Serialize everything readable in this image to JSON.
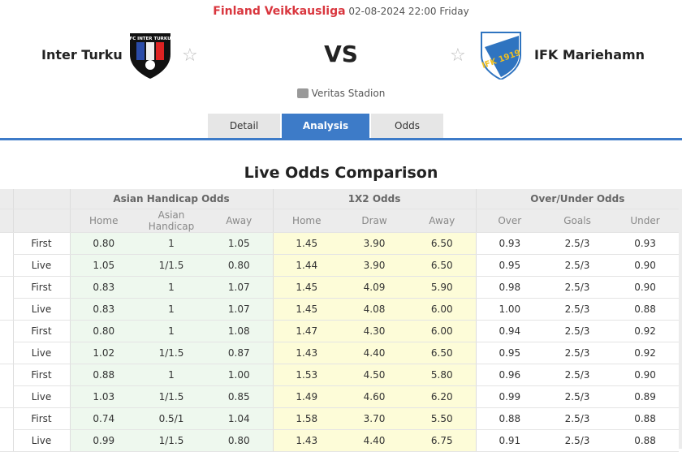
{
  "header": {
    "league": "Finland Veikkausliga",
    "datetime": "02-08-2024 22:00 Friday",
    "home": "Inter Turku",
    "away": "IFK Mariehamn",
    "vs": "VS",
    "venue": "Veritas Stadion",
    "home_logo_text": "FC INTER TURKU",
    "away_logo_text": "IFK 1919"
  },
  "tabs": [
    {
      "label": "Detail"
    },
    {
      "label": "Analysis",
      "active": true
    },
    {
      "label": "Odds"
    }
  ],
  "section_title": "Live Odds Comparison",
  "groups": [
    "Asian Handicap Odds",
    "1X2 Odds",
    "Over/Under Odds"
  ],
  "columns": [
    "Home",
    "Asian Handicap",
    "Away",
    "Home",
    "Draw",
    "Away",
    "Over",
    "Goals",
    "Under"
  ],
  "rows": [
    [
      "First",
      "0.80",
      "1",
      "1.05",
      "1.45",
      "3.90",
      "6.50",
      "0.93",
      "2.5/3",
      "0.93"
    ],
    [
      "Live",
      "1.05",
      "1/1.5",
      "0.80",
      "1.44",
      "3.90",
      "6.50",
      "0.95",
      "2.5/3",
      "0.90"
    ],
    [
      "First",
      "0.83",
      "1",
      "1.07",
      "1.45",
      "4.09",
      "5.90",
      "0.98",
      "2.5/3",
      "0.90"
    ],
    [
      "Live",
      "0.83",
      "1",
      "1.07",
      "1.45",
      "4.08",
      "6.00",
      "1.00",
      "2.5/3",
      "0.88"
    ],
    [
      "First",
      "0.80",
      "1",
      "1.08",
      "1.47",
      "4.30",
      "6.00",
      "0.94",
      "2.5/3",
      "0.92"
    ],
    [
      "Live",
      "1.02",
      "1/1.5",
      "0.87",
      "1.43",
      "4.40",
      "6.50",
      "0.95",
      "2.5/3",
      "0.92"
    ],
    [
      "First",
      "0.88",
      "1",
      "1.00",
      "1.53",
      "4.50",
      "5.80",
      "0.96",
      "2.5/3",
      "0.90"
    ],
    [
      "Live",
      "1.03",
      "1/1.5",
      "0.85",
      "1.49",
      "4.60",
      "6.20",
      "0.99",
      "2.5/3",
      "0.89"
    ],
    [
      "First",
      "0.74",
      "0.5/1",
      "1.04",
      "1.58",
      "3.70",
      "5.50",
      "0.88",
      "2.5/3",
      "0.88"
    ],
    [
      "Live",
      "0.99",
      "1/1.5",
      "0.80",
      "1.43",
      "4.40",
      "6.75",
      "0.91",
      "2.5/3",
      "0.88"
    ]
  ]
}
